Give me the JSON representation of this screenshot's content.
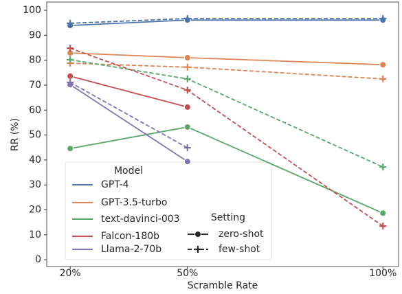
{
  "chart_data": {
    "type": "line",
    "xlabel": "Scramble Rate",
    "ylabel": "RR (%)",
    "x": [
      20,
      50,
      100
    ],
    "xlim": [
      14,
      104
    ],
    "xticks": [
      {
        "value": 20,
        "label": "20%"
      },
      {
        "value": 50,
        "label": "50%"
      },
      {
        "value": 100,
        "label": "100%"
      }
    ],
    "ylim": [
      -2.7,
      103.3
    ],
    "yticks": [
      0,
      10,
      20,
      30,
      40,
      50,
      60,
      70,
      80,
      90,
      100
    ],
    "legend_titles": {
      "model": "Model",
      "setting": "Setting"
    },
    "models": [
      {
        "name": "GPT-4",
        "color": "#4c72b0"
      },
      {
        "name": "GPT-3.5-turbo",
        "color": "#dd8452"
      },
      {
        "name": "text-davinci-003",
        "color": "#55a868"
      },
      {
        "name": "Falcon-180b",
        "color": "#c44e52"
      },
      {
        "name": "Llama-2-70b",
        "color": "#8172b3"
      }
    ],
    "settings": [
      {
        "name": "zero-shot",
        "marker": "circle",
        "dashed": false
      },
      {
        "name": "few-shot",
        "marker": "plus",
        "dashed": true
      }
    ],
    "series": [
      {
        "model": "GPT-4",
        "setting": "zero-shot",
        "values": [
          93.9,
          96.1,
          96.1
        ]
      },
      {
        "model": "GPT-4",
        "setting": "few-shot",
        "values": [
          94.8,
          96.7,
          96.7
        ]
      },
      {
        "model": "GPT-3.5-turbo",
        "setting": "zero-shot",
        "values": [
          82.9,
          81.0,
          78.2
        ]
      },
      {
        "model": "GPT-3.5-turbo",
        "setting": "few-shot",
        "values": [
          78.8,
          77.2,
          72.5
        ]
      },
      {
        "model": "text-davinci-003",
        "setting": "zero-shot",
        "values": [
          44.6,
          53.2,
          18.7
        ]
      },
      {
        "model": "text-davinci-003",
        "setting": "few-shot",
        "values": [
          80.2,
          72.5,
          37.2
        ]
      },
      {
        "model": "Falcon-180b",
        "setting": "zero-shot",
        "values": [
          73.6,
          61.2,
          null
        ]
      },
      {
        "model": "Falcon-180b",
        "setting": "few-shot",
        "values": [
          84.8,
          68.0,
          13.5
        ]
      },
      {
        "model": "Llama-2-70b",
        "setting": "zero-shot",
        "values": [
          70.2,
          39.4,
          null
        ]
      },
      {
        "model": "Llama-2-70b",
        "setting": "few-shot",
        "values": [
          71.1,
          44.9,
          null
        ]
      }
    ]
  }
}
